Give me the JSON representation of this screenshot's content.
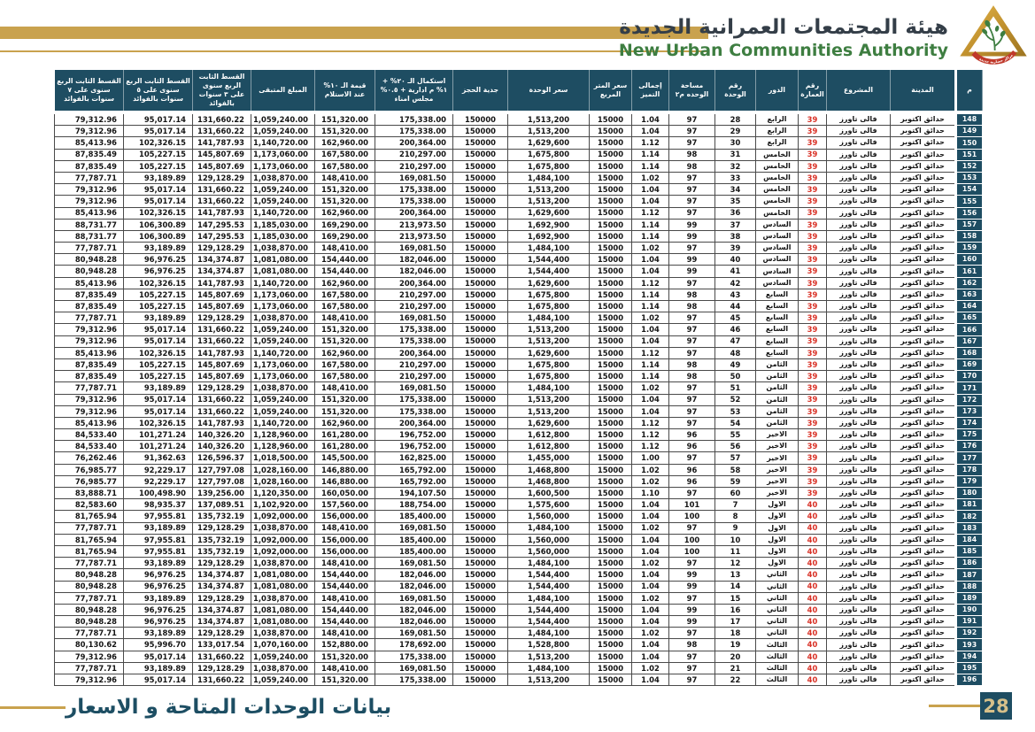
{
  "header": {
    "title_ar": "هيئة المجتمعات العمرانية الجديدة",
    "title_en": "New Urban Communities Authority",
    "logo_ribbon_text": "مراكز حضارية جديدة"
  },
  "footer": {
    "title_ar": "بيانات الوحدات المتاحة و الاسعار",
    "page_number": "28"
  },
  "colors": {
    "header_teal": "#1e4d62",
    "gold": "#c9a24e",
    "building_red": "#d93025",
    "green": "#3e7e41",
    "footer_teal": "#1d4e63",
    "page_badge_text": "#d6c08a"
  },
  "table": {
    "columns": [
      {
        "key": "serial",
        "label": "م"
      },
      {
        "key": "city",
        "label": "المدينة"
      },
      {
        "key": "project",
        "label": "المشروع"
      },
      {
        "key": "building",
        "label": "رقم العمارة"
      },
      {
        "key": "floor",
        "label": "الدور"
      },
      {
        "key": "unit_no",
        "label": "رقم الوحدة"
      },
      {
        "key": "area",
        "label": "مساحة الوحده م٢"
      },
      {
        "key": "premium",
        "label": "إجمالى التميز"
      },
      {
        "key": "meter_price",
        "label": "سعر المتر المربع"
      },
      {
        "key": "unit_price",
        "label": "سعر الوحدة"
      },
      {
        "key": "reservation",
        "label": "جدية الحجز"
      },
      {
        "key": "completion",
        "label": "استكمال الـ ٢٠% + ١% م ادارية + ٠.٥% مجلس امناء"
      },
      {
        "key": "receipt",
        "label": "قيمة الـ ١٠% عند الاستلام"
      },
      {
        "key": "remaining",
        "label": "المبلغ المتبقى"
      },
      {
        "key": "inst_3y",
        "label": "القسط الثابت الربع سنوى على ٣ سنوات بالفوائد"
      },
      {
        "key": "inst_5y",
        "label": "القسط الثابت الربع سنوى على ٥ سنوات بالفوائد"
      },
      {
        "key": "inst_7y",
        "label": "القسط الثابت الربع سنوى على ٧ سنوات بالفوائد"
      }
    ],
    "rows": [
      [
        "148",
        "حدائق اكتوبر",
        "فالى تاورز",
        "39",
        "الرابع",
        "28",
        "97",
        "1.04",
        "15000",
        "1,513,200",
        "150000",
        "175,338.00",
        "151,320.00",
        "1,059,240.00",
        "131,660.22",
        "95,017.14",
        "79,312.96"
      ],
      [
        "149",
        "حدائق اكتوبر",
        "فالى تاورز",
        "39",
        "الرابع",
        "29",
        "97",
        "1.04",
        "15000",
        "1,513,200",
        "150000",
        "175,338.00",
        "151,320.00",
        "1,059,240.00",
        "131,660.22",
        "95,017.14",
        "79,312.96"
      ],
      [
        "150",
        "حدائق اكتوبر",
        "فالى تاورز",
        "39",
        "الرابع",
        "30",
        "97",
        "1.12",
        "15000",
        "1,629,600",
        "150000",
        "200,364.00",
        "162,960.00",
        "1,140,720.00",
        "141,787.93",
        "102,326.15",
        "85,413.96"
      ],
      [
        "151",
        "حدائق اكتوبر",
        "فالى تاورز",
        "39",
        "الخامس",
        "31",
        "98",
        "1.14",
        "15000",
        "1,675,800",
        "150000",
        "210,297.00",
        "167,580.00",
        "1,173,060.00",
        "145,807.69",
        "105,227.15",
        "87,835.49"
      ],
      [
        "152",
        "حدائق اكتوبر",
        "فالى تاورز",
        "39",
        "الخامس",
        "32",
        "98",
        "1.14",
        "15000",
        "1,675,800",
        "150000",
        "210,297.00",
        "167,580.00",
        "1,173,060.00",
        "145,807.69",
        "105,227.15",
        "87,835.49"
      ],
      [
        "153",
        "حدائق اكتوبر",
        "فالى تاورز",
        "39",
        "الخامس",
        "33",
        "97",
        "1.02",
        "15000",
        "1,484,100",
        "150000",
        "169,081.50",
        "148,410.00",
        "1,038,870.00",
        "129,128.29",
        "93,189.89",
        "77,787.71"
      ],
      [
        "154",
        "حدائق اكتوبر",
        "فالى تاورز",
        "39",
        "الخامس",
        "34",
        "97",
        "1.04",
        "15000",
        "1,513,200",
        "150000",
        "175,338.00",
        "151,320.00",
        "1,059,240.00",
        "131,660.22",
        "95,017.14",
        "79,312.96"
      ],
      [
        "155",
        "حدائق اكتوبر",
        "فالى تاورز",
        "39",
        "الخامس",
        "35",
        "97",
        "1.04",
        "15000",
        "1,513,200",
        "150000",
        "175,338.00",
        "151,320.00",
        "1,059,240.00",
        "131,660.22",
        "95,017.14",
        "79,312.96"
      ],
      [
        "156",
        "حدائق اكتوبر",
        "فالى تاورز",
        "39",
        "الخامس",
        "36",
        "97",
        "1.12",
        "15000",
        "1,629,600",
        "150000",
        "200,364.00",
        "162,960.00",
        "1,140,720.00",
        "141,787.93",
        "102,326.15",
        "85,413.96"
      ],
      [
        "157",
        "حدائق اكتوبر",
        "فالى تاورز",
        "39",
        "السادس",
        "37",
        "99",
        "1.14",
        "15000",
        "1,692,900",
        "150000",
        "213,973.50",
        "169,290.00",
        "1,185,030.00",
        "147,295.53",
        "106,300.89",
        "88,731.77"
      ],
      [
        "158",
        "حدائق اكتوبر",
        "فالى تاورز",
        "39",
        "السادس",
        "38",
        "99",
        "1.14",
        "15000",
        "1,692,900",
        "150000",
        "213,973.50",
        "169,290.00",
        "1,185,030.00",
        "147,295.53",
        "106,300.89",
        "88,731.77"
      ],
      [
        "159",
        "حدائق اكتوبر",
        "فالى تاورز",
        "39",
        "السادس",
        "39",
        "97",
        "1.02",
        "15000",
        "1,484,100",
        "150000",
        "169,081.50",
        "148,410.00",
        "1,038,870.00",
        "129,128.29",
        "93,189.89",
        "77,787.71"
      ],
      [
        "160",
        "حدائق اكتوبر",
        "فالى تاورز",
        "39",
        "السادس",
        "40",
        "99",
        "1.04",
        "15000",
        "1,544,400",
        "150000",
        "182,046.00",
        "154,440.00",
        "1,081,080.00",
        "134,374.87",
        "96,976.25",
        "80,948.28"
      ],
      [
        "161",
        "حدائق اكتوبر",
        "فالى تاورز",
        "39",
        "السادس",
        "41",
        "99",
        "1.04",
        "15000",
        "1,544,400",
        "150000",
        "182,046.00",
        "154,440.00",
        "1,081,080.00",
        "134,374.87",
        "96,976.25",
        "80,948.28"
      ],
      [
        "162",
        "حدائق اكتوبر",
        "فالى تاورز",
        "39",
        "السادس",
        "42",
        "97",
        "1.12",
        "15000",
        "1,629,600",
        "150000",
        "200,364.00",
        "162,960.00",
        "1,140,720.00",
        "141,787.93",
        "102,326.15",
        "85,413.96"
      ],
      [
        "163",
        "حدائق اكتوبر",
        "فالى تاورز",
        "39",
        "السابع",
        "43",
        "98",
        "1.14",
        "15000",
        "1,675,800",
        "150000",
        "210,297.00",
        "167,580.00",
        "1,173,060.00",
        "145,807.69",
        "105,227.15",
        "87,835.49"
      ],
      [
        "164",
        "حدائق اكتوبر",
        "فالى تاورز",
        "39",
        "السابع",
        "44",
        "98",
        "1.14",
        "15000",
        "1,675,800",
        "150000",
        "210,297.00",
        "167,580.00",
        "1,173,060.00",
        "145,807.69",
        "105,227.15",
        "87,835.49"
      ],
      [
        "165",
        "حدائق اكتوبر",
        "فالى تاورز",
        "39",
        "السابع",
        "45",
        "97",
        "1.02",
        "15000",
        "1,484,100",
        "150000",
        "169,081.50",
        "148,410.00",
        "1,038,870.00",
        "129,128.29",
        "93,189.89",
        "77,787.71"
      ],
      [
        "166",
        "حدائق اكتوبر",
        "فالى تاورز",
        "39",
        "السابع",
        "46",
        "97",
        "1.04",
        "15000",
        "1,513,200",
        "150000",
        "175,338.00",
        "151,320.00",
        "1,059,240.00",
        "131,660.22",
        "95,017.14",
        "79,312.96"
      ],
      [
        "167",
        "حدائق اكتوبر",
        "فالى تاورز",
        "39",
        "السابع",
        "47",
        "97",
        "1.04",
        "15000",
        "1,513,200",
        "150000",
        "175,338.00",
        "151,320.00",
        "1,059,240.00",
        "131,660.22",
        "95,017.14",
        "79,312.96"
      ],
      [
        "168",
        "حدائق اكتوبر",
        "فالى تاورز",
        "39",
        "السابع",
        "48",
        "97",
        "1.12",
        "15000",
        "1,629,600",
        "150000",
        "200,364.00",
        "162,960.00",
        "1,140,720.00",
        "141,787.93",
        "102,326.15",
        "85,413.96"
      ],
      [
        "169",
        "حدائق اكتوبر",
        "فالى تاورز",
        "39",
        "الثامن",
        "49",
        "98",
        "1.14",
        "15000",
        "1,675,800",
        "150000",
        "210,297.00",
        "167,580.00",
        "1,173,060.00",
        "145,807.69",
        "105,227.15",
        "87,835.49"
      ],
      [
        "170",
        "حدائق اكتوبر",
        "فالى تاورز",
        "39",
        "الثامن",
        "50",
        "98",
        "1.14",
        "15000",
        "1,675,800",
        "150000",
        "210,297.00",
        "167,580.00",
        "1,173,060.00",
        "145,807.69",
        "105,227.15",
        "87,835.49"
      ],
      [
        "171",
        "حدائق اكتوبر",
        "فالى تاورز",
        "39",
        "الثامن",
        "51",
        "97",
        "1.02",
        "15000",
        "1,484,100",
        "150000",
        "169,081.50",
        "148,410.00",
        "1,038,870.00",
        "129,128.29",
        "93,189.89",
        "77,787.71"
      ],
      [
        "172",
        "حدائق اكتوبر",
        "فالى تاورز",
        "39",
        "الثامن",
        "52",
        "97",
        "1.04",
        "15000",
        "1,513,200",
        "150000",
        "175,338.00",
        "151,320.00",
        "1,059,240.00",
        "131,660.22",
        "95,017.14",
        "79,312.96"
      ],
      [
        "173",
        "حدائق اكتوبر",
        "فالى تاورز",
        "39",
        "الثامن",
        "53",
        "97",
        "1.04",
        "15000",
        "1,513,200",
        "150000",
        "175,338.00",
        "151,320.00",
        "1,059,240.00",
        "131,660.22",
        "95,017.14",
        "79,312.96"
      ],
      [
        "174",
        "حدائق اكتوبر",
        "فالى تاورز",
        "39",
        "الثامن",
        "54",
        "97",
        "1.12",
        "15000",
        "1,629,600",
        "150000",
        "200,364.00",
        "162,960.00",
        "1,140,720.00",
        "141,787.93",
        "102,326.15",
        "85,413.96"
      ],
      [
        "175",
        "حدائق اكتوبر",
        "فالى تاورز",
        "39",
        "الاخير",
        "55",
        "96",
        "1.12",
        "15000",
        "1,612,800",
        "150000",
        "196,752.00",
        "161,280.00",
        "1,128,960.00",
        "140,326.20",
        "101,271.24",
        "84,533.40"
      ],
      [
        "176",
        "حدائق اكتوبر",
        "فالى تاورز",
        "39",
        "الاخير",
        "56",
        "96",
        "1.12",
        "15000",
        "1,612,800",
        "150000",
        "196,752.00",
        "161,280.00",
        "1,128,960.00",
        "140,326.20",
        "101,271.24",
        "84,533.40"
      ],
      [
        "177",
        "حدائق اكتوبر",
        "فالى تاورز",
        "39",
        "الاخير",
        "57",
        "97",
        "1.00",
        "15000",
        "1,455,000",
        "150000",
        "162,825.00",
        "145,500.00",
        "1,018,500.00",
        "126,596.37",
        "91,362.63",
        "76,262.46"
      ],
      [
        "178",
        "حدائق اكتوبر",
        "فالى تاورز",
        "39",
        "الاخير",
        "58",
        "96",
        "1.02",
        "15000",
        "1,468,800",
        "150000",
        "165,792.00",
        "146,880.00",
        "1,028,160.00",
        "127,797.08",
        "92,229.17",
        "76,985.77"
      ],
      [
        "179",
        "حدائق اكتوبر",
        "فالى تاورز",
        "39",
        "الاخير",
        "59",
        "96",
        "1.02",
        "15000",
        "1,468,800",
        "150000",
        "165,792.00",
        "146,880.00",
        "1,028,160.00",
        "127,797.08",
        "92,229.17",
        "76,985.77"
      ],
      [
        "180",
        "حدائق اكتوبر",
        "فالى تاورز",
        "39",
        "الاخير",
        "60",
        "97",
        "1.10",
        "15000",
        "1,600,500",
        "150000",
        "194,107.50",
        "160,050.00",
        "1,120,350.00",
        "139,256.00",
        "100,498.90",
        "83,888.71"
      ],
      [
        "181",
        "حدائق اكتوبر",
        "فالى تاورز",
        "40",
        "الاول",
        "7",
        "101",
        "1.04",
        "15000",
        "1,575,600",
        "150000",
        "188,754.00",
        "157,560.00",
        "1,102,920.00",
        "137,089.51",
        "98,935.37",
        "82,583.60"
      ],
      [
        "182",
        "حدائق اكتوبر",
        "فالى تاورز",
        "40",
        "الاول",
        "8",
        "100",
        "1.04",
        "15000",
        "1,560,000",
        "150000",
        "185,400.00",
        "156,000.00",
        "1,092,000.00",
        "135,732.19",
        "97,955.81",
        "81,765.94"
      ],
      [
        "183",
        "حدائق اكتوبر",
        "فالى تاورز",
        "40",
        "الاول",
        "9",
        "97",
        "1.02",
        "15000",
        "1,484,100",
        "150000",
        "169,081.50",
        "148,410.00",
        "1,038,870.00",
        "129,128.29",
        "93,189.89",
        "77,787.71"
      ],
      [
        "184",
        "حدائق اكتوبر",
        "فالى تاورز",
        "40",
        "الاول",
        "10",
        "100",
        "1.04",
        "15000",
        "1,560,000",
        "150000",
        "185,400.00",
        "156,000.00",
        "1,092,000.00",
        "135,732.19",
        "97,955.81",
        "81,765.94"
      ],
      [
        "185",
        "حدائق اكتوبر",
        "فالى تاورز",
        "40",
        "الاول",
        "11",
        "100",
        "1.04",
        "15000",
        "1,560,000",
        "150000",
        "185,400.00",
        "156,000.00",
        "1,092,000.00",
        "135,732.19",
        "97,955.81",
        "81,765.94"
      ],
      [
        "186",
        "حدائق اكتوبر",
        "فالى تاورز",
        "40",
        "الاول",
        "12",
        "97",
        "1.02",
        "15000",
        "1,484,100",
        "150000",
        "169,081.50",
        "148,410.00",
        "1,038,870.00",
        "129,128.29",
        "93,189.89",
        "77,787.71"
      ],
      [
        "187",
        "حدائق اكتوبر",
        "فالى تاورز",
        "40",
        "الثاني",
        "13",
        "99",
        "1.04",
        "15000",
        "1,544,400",
        "150000",
        "182,046.00",
        "154,440.00",
        "1,081,080.00",
        "134,374.87",
        "96,976.25",
        "80,948.28"
      ],
      [
        "188",
        "حدائق اكتوبر",
        "فالى تاورز",
        "40",
        "الثاني",
        "14",
        "99",
        "1.04",
        "15000",
        "1,544,400",
        "150000",
        "182,046.00",
        "154,440.00",
        "1,081,080.00",
        "134,374.87",
        "96,976.25",
        "80,948.28"
      ],
      [
        "189",
        "حدائق اكتوبر",
        "فالى تاورز",
        "40",
        "الثاني",
        "15",
        "97",
        "1.02",
        "15000",
        "1,484,100",
        "150000",
        "169,081.50",
        "148,410.00",
        "1,038,870.00",
        "129,128.29",
        "93,189.89",
        "77,787.71"
      ],
      [
        "190",
        "حدائق اكتوبر",
        "فالى تاورز",
        "40",
        "الثاني",
        "16",
        "99",
        "1.04",
        "15000",
        "1,544,400",
        "150000",
        "182,046.00",
        "154,440.00",
        "1,081,080.00",
        "134,374.87",
        "96,976.25",
        "80,948.28"
      ],
      [
        "191",
        "حدائق اكتوبر",
        "فالى تاورز",
        "40",
        "الثاني",
        "17",
        "99",
        "1.04",
        "15000",
        "1,544,400",
        "150000",
        "182,046.00",
        "154,440.00",
        "1,081,080.00",
        "134,374.87",
        "96,976.25",
        "80,948.28"
      ],
      [
        "192",
        "حدائق اكتوبر",
        "فالى تاورز",
        "40",
        "الثاني",
        "18",
        "97",
        "1.02",
        "15000",
        "1,484,100",
        "150000",
        "169,081.50",
        "148,410.00",
        "1,038,870.00",
        "129,128.29",
        "93,189.89",
        "77,787.71"
      ],
      [
        "193",
        "حدائق اكتوبر",
        "فالى تاورز",
        "40",
        "الثالث",
        "19",
        "98",
        "1.04",
        "15000",
        "1,528,800",
        "150000",
        "178,692.00",
        "152,880.00",
        "1,070,160.00",
        "133,017.54",
        "95,996.70",
        "80,130.62"
      ],
      [
        "194",
        "حدائق اكتوبر",
        "فالى تاورز",
        "40",
        "الثالث",
        "20",
        "97",
        "1.04",
        "15000",
        "1,513,200",
        "150000",
        "175,338.00",
        "151,320.00",
        "1,059,240.00",
        "131,660.22",
        "95,017.14",
        "79,312.96"
      ],
      [
        "195",
        "حدائق اكتوبر",
        "فالى تاورز",
        "40",
        "الثالث",
        "21",
        "97",
        "1.02",
        "15000",
        "1,484,100",
        "150000",
        "169,081.50",
        "148,410.00",
        "1,038,870.00",
        "129,128.29",
        "93,189.89",
        "77,787.71"
      ],
      [
        "196",
        "حدائق اكتوبر",
        "فالى تاورز",
        "40",
        "الثالث",
        "22",
        "97",
        "1.04",
        "15000",
        "1,513,200",
        "150000",
        "175,338.00",
        "151,320.00",
        "1,059,240.00",
        "131,660.22",
        "95,017.14",
        "79,312.96"
      ]
    ]
  }
}
